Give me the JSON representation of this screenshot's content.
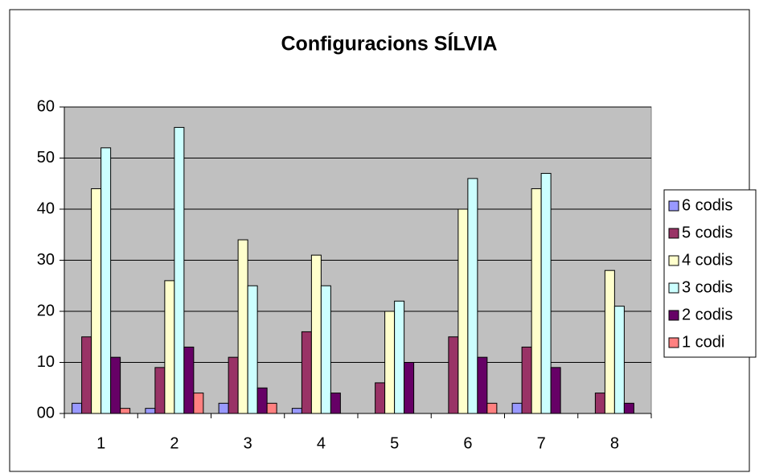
{
  "chart_data": {
    "type": "bar",
    "title": "Configuracions SÍLVIA",
    "categories": [
      "1",
      "2",
      "3",
      "4",
      "5",
      "6",
      "7",
      "8"
    ],
    "series": [
      {
        "name": "6 codis",
        "color": "#9999ff",
        "values": [
          2,
          1,
          2,
          1,
          0,
          0,
          2,
          0
        ]
      },
      {
        "name": "5 codis",
        "color": "#993366",
        "values": [
          15,
          9,
          11,
          16,
          6,
          15,
          13,
          4
        ]
      },
      {
        "name": "4 codis",
        "color": "#ffffcc",
        "values": [
          44,
          26,
          34,
          31,
          20,
          40,
          44,
          28
        ]
      },
      {
        "name": "3 codis",
        "color": "#ccffff",
        "values": [
          52,
          56,
          25,
          25,
          22,
          46,
          47,
          21
        ]
      },
      {
        "name": "2 codis",
        "color": "#660066",
        "values": [
          11,
          13,
          5,
          4,
          10,
          11,
          9,
          2
        ]
      },
      {
        "name": "1 codi",
        "color": "#ff8080",
        "values": [
          1,
          4,
          2,
          0,
          0,
          2,
          0,
          0
        ]
      }
    ],
    "ylim": [
      0,
      60
    ],
    "yticks": [
      {
        "value": 0,
        "label": "00"
      },
      10,
      20,
      30,
      40,
      50,
      60
    ],
    "grid": true,
    "legend": "right",
    "plot_background": "#c0c0c0"
  }
}
